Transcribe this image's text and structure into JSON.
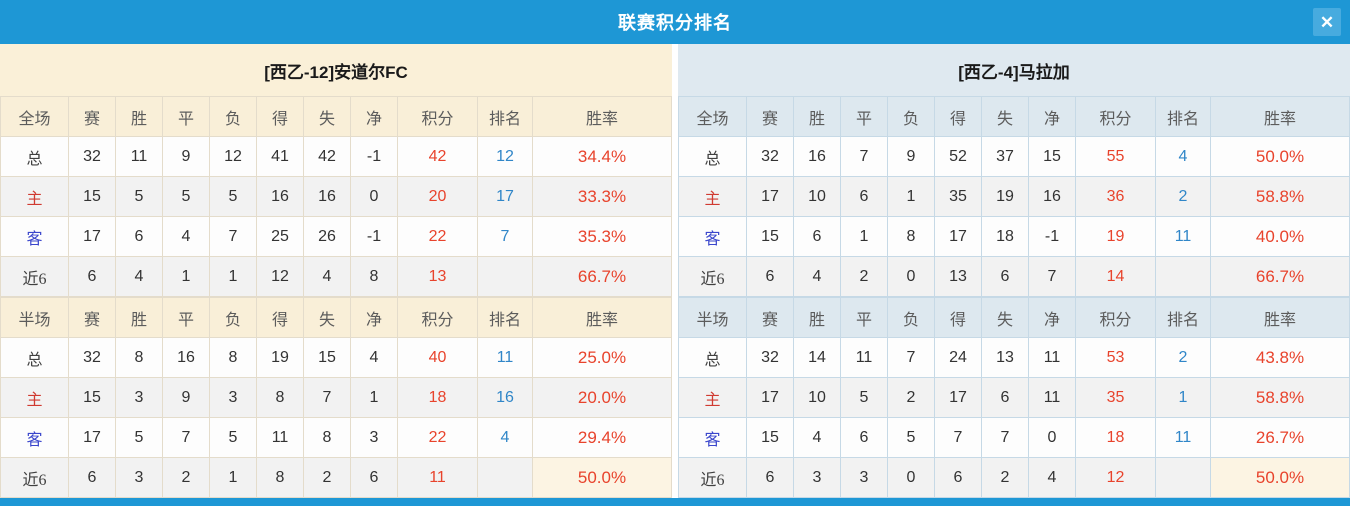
{
  "window": {
    "title": "联赛积分排名",
    "close_icon": "✕"
  },
  "colors": {
    "titlebar": "#1e97d5",
    "close_button": "#47abdf",
    "left_header_bg": "#f9efd8",
    "right_header_bg": "#dde8ef",
    "points_red": "#e8432c",
    "rank_blue": "#3086c8",
    "home_label_red": "#d03a31",
    "away_label_blue": "#3a46cc",
    "stripe_gray": "#f2f2f2",
    "highlight_cream": "#fcf4e3"
  },
  "columns": {
    "full_label": "全场",
    "half_label": "半场",
    "stats": [
      "赛",
      "胜",
      "平",
      "负",
      "得",
      "失",
      "净",
      "积分",
      "排名",
      "胜率"
    ]
  },
  "teams": [
    {
      "name": "[西乙-12]安道尔FC",
      "full": [
        {
          "label": "总",
          "type": "total",
          "cells": [
            32,
            11,
            9,
            12,
            41,
            42,
            -1
          ],
          "points": 42,
          "rank": 12,
          "rate": "34.4%"
        },
        {
          "label": "主",
          "type": "home",
          "cells": [
            15,
            5,
            5,
            5,
            16,
            16,
            0
          ],
          "points": 20,
          "rank": 17,
          "rate": "33.3%"
        },
        {
          "label": "客",
          "type": "away",
          "cells": [
            17,
            6,
            4,
            7,
            25,
            26,
            -1
          ],
          "points": 22,
          "rank": 7,
          "rate": "35.3%"
        },
        {
          "label": "近6",
          "type": "recent",
          "cells": [
            6,
            4,
            1,
            1,
            12,
            4,
            8
          ],
          "points": 13,
          "rank": "",
          "rate": "66.7%"
        }
      ],
      "half": [
        {
          "label": "总",
          "type": "total",
          "cells": [
            32,
            8,
            16,
            8,
            19,
            15,
            4
          ],
          "points": 40,
          "rank": 11,
          "rate": "25.0%"
        },
        {
          "label": "主",
          "type": "home",
          "cells": [
            15,
            3,
            9,
            3,
            8,
            7,
            1
          ],
          "points": 18,
          "rank": 16,
          "rate": "20.0%"
        },
        {
          "label": "客",
          "type": "away",
          "cells": [
            17,
            5,
            7,
            5,
            11,
            8,
            3
          ],
          "points": 22,
          "rank": 4,
          "rate": "29.4%"
        },
        {
          "label": "近6",
          "type": "recent",
          "cells": [
            6,
            3,
            2,
            1,
            8,
            2,
            6
          ],
          "points": 11,
          "rank": "",
          "rate": "50.0%"
        }
      ]
    },
    {
      "name": "[西乙-4]马拉加",
      "full": [
        {
          "label": "总",
          "type": "total",
          "cells": [
            32,
            16,
            7,
            9,
            52,
            37,
            15
          ],
          "points": 55,
          "rank": 4,
          "rate": "50.0%"
        },
        {
          "label": "主",
          "type": "home",
          "cells": [
            17,
            10,
            6,
            1,
            35,
            19,
            16
          ],
          "points": 36,
          "rank": 2,
          "rate": "58.8%"
        },
        {
          "label": "客",
          "type": "away",
          "cells": [
            15,
            6,
            1,
            8,
            17,
            18,
            -1
          ],
          "points": 19,
          "rank": 11,
          "rate": "40.0%"
        },
        {
          "label": "近6",
          "type": "recent",
          "cells": [
            6,
            4,
            2,
            0,
            13,
            6,
            7
          ],
          "points": 14,
          "rank": "",
          "rate": "66.7%"
        }
      ],
      "half": [
        {
          "label": "总",
          "type": "total",
          "cells": [
            32,
            14,
            11,
            7,
            24,
            13,
            11
          ],
          "points": 53,
          "rank": 2,
          "rate": "43.8%"
        },
        {
          "label": "主",
          "type": "home",
          "cells": [
            17,
            10,
            5,
            2,
            17,
            6,
            11
          ],
          "points": 35,
          "rank": 1,
          "rate": "58.8%"
        },
        {
          "label": "客",
          "type": "away",
          "cells": [
            15,
            4,
            6,
            5,
            7,
            7,
            0
          ],
          "points": 18,
          "rank": 11,
          "rate": "26.7%"
        },
        {
          "label": "近6",
          "type": "recent",
          "cells": [
            6,
            3,
            3,
            0,
            6,
            2,
            4
          ],
          "points": 12,
          "rank": "",
          "rate": "50.0%"
        }
      ]
    }
  ]
}
